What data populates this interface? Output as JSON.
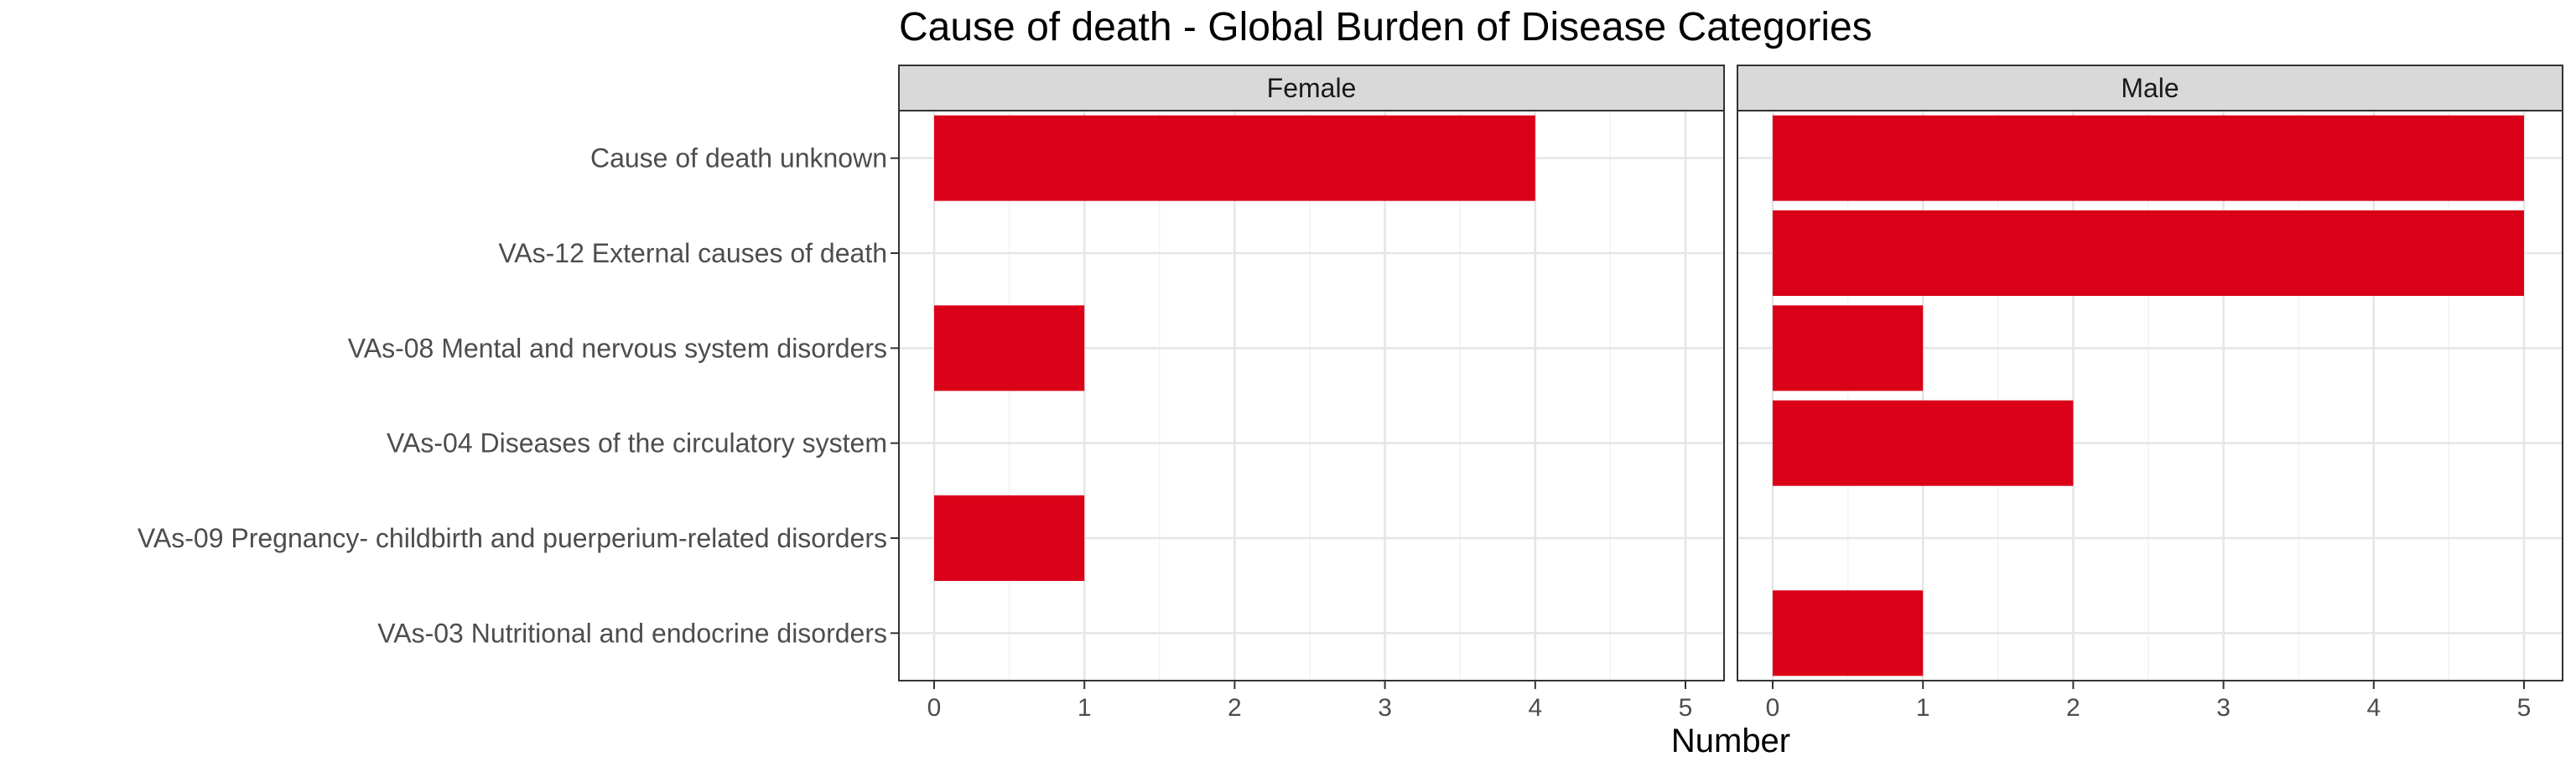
{
  "chart_data": {
    "type": "bar",
    "orientation": "horizontal",
    "title": "Cause of death - Global Burden of Disease Categories",
    "xlabel": "Number",
    "ylabel": "",
    "xlim": [
      0,
      5
    ],
    "xticks": [
      0,
      1,
      2,
      3,
      4,
      5
    ],
    "grid": true,
    "bar_color": "#DA0018",
    "categories": [
      "Cause of death unknown",
      "VAs-12 External causes of death",
      "VAs-08 Mental and nervous system disorders",
      "VAs-04 Diseases of the circulatory system",
      "VAs-09 Pregnancy- childbirth and puerperium-related disorders",
      "VAs-03 Nutritional and endocrine disorders"
    ],
    "panels": [
      {
        "name": "Female",
        "values": [
          4,
          0,
          1,
          0,
          1,
          0
        ]
      },
      {
        "name": "Male",
        "values": [
          5,
          5,
          1,
          2,
          0,
          1
        ]
      }
    ]
  }
}
